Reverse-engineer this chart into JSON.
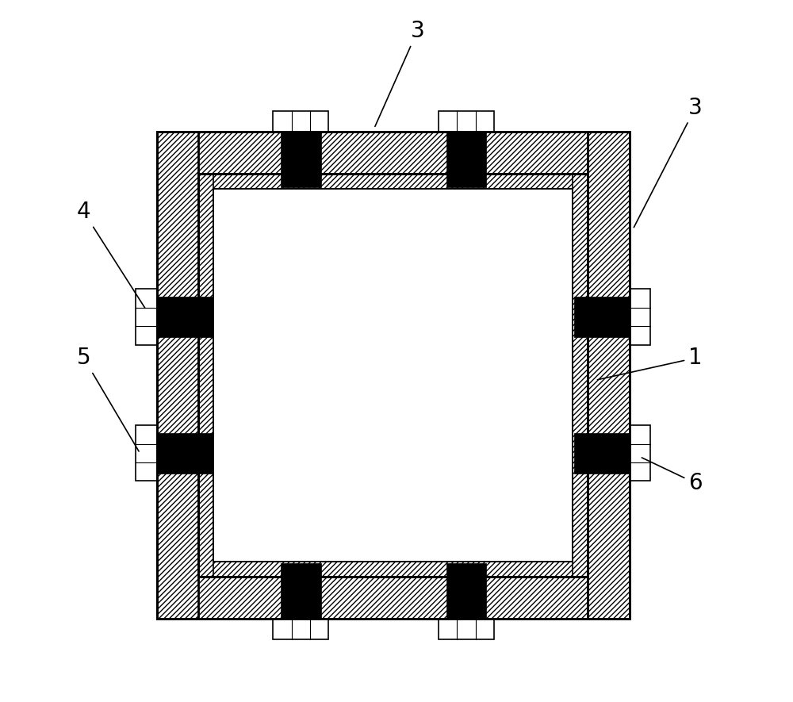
{
  "bg_color": "#ffffff",
  "figsize": [
    10,
    8.85
  ],
  "dpi": 100,
  "label_fontsize": 20,
  "ox": 0.155,
  "oy": 0.115,
  "ow": 0.68,
  "oh": 0.7,
  "outer_lw": 2.0,
  "inner_lw": 1.2,
  "wt_outer": 0.06,
  "wt_inner": 0.022
}
